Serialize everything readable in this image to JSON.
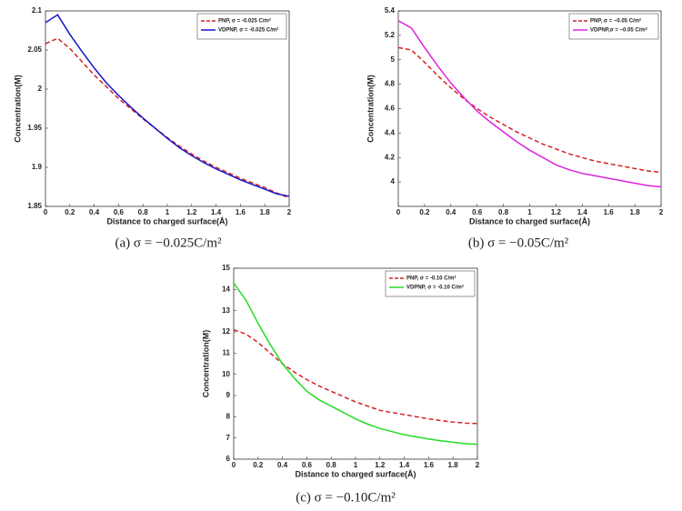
{
  "chart_data": [
    {
      "type": "line",
      "caption": "(a) σ = −0.025C/m²",
      "xlabel": "Distance to charged surface(Å)",
      "ylabel": "Concentration(M)",
      "x": [
        0,
        0.1,
        0.2,
        0.3,
        0.4,
        0.5,
        0.6,
        0.7,
        0.8,
        0.9,
        1.0,
        1.1,
        1.2,
        1.3,
        1.4,
        1.5,
        1.6,
        1.7,
        1.8,
        1.9,
        2.0
      ],
      "xlim": [
        0,
        2
      ],
      "xticks": [
        0,
        0.2,
        0.4,
        0.6,
        0.8,
        1,
        1.2,
        1.4,
        1.6,
        1.8,
        2
      ],
      "ylim": [
        1.85,
        2.1
      ],
      "yticks": [
        1.85,
        1.9,
        1.95,
        2,
        2.05,
        2.1
      ],
      "legend": "upper right",
      "series": [
        {
          "name": "PNP,    σ = -0.025 C/m²",
          "color": "#d42020",
          "dashed": true,
          "values": [
            2.058,
            2.065,
            2.052,
            2.035,
            2.018,
            2.003,
            1.988,
            1.975,
            1.962,
            1.95,
            1.938,
            1.927,
            1.917,
            1.908,
            1.9,
            1.893,
            1.886,
            1.88,
            1.874,
            1.867,
            1.861
          ]
        },
        {
          "name": "VDPNP, σ = -0.025 C/m²",
          "color": "#1515c8",
          "dashed": false,
          "values": [
            2.085,
            2.095,
            2.07,
            2.048,
            2.027,
            2.008,
            1.992,
            1.977,
            1.963,
            1.95,
            1.937,
            1.925,
            1.915,
            1.906,
            1.898,
            1.891,
            1.884,
            1.878,
            1.872,
            1.866,
            1.863
          ]
        }
      ]
    },
    {
      "type": "line",
      "caption": "(b) σ = −0.05C/m²",
      "xlabel": "Distance to charged surface(Å)",
      "ylabel": "Concentration(M)",
      "x": [
        0,
        0.1,
        0.2,
        0.3,
        0.4,
        0.5,
        0.6,
        0.7,
        0.8,
        0.9,
        1.0,
        1.1,
        1.2,
        1.3,
        1.4,
        1.5,
        1.6,
        1.7,
        1.8,
        1.9,
        2.0
      ],
      "xlim": [
        0,
        2
      ],
      "xticks": [
        0,
        0.2,
        0.4,
        0.6,
        0.8,
        1,
        1.2,
        1.4,
        1.6,
        1.8,
        2
      ],
      "ylim": [
        3.8,
        5.4
      ],
      "yticks": [
        4,
        4.2,
        4.4,
        4.6,
        4.8,
        5,
        5.2,
        5.4
      ],
      "legend": "upper right",
      "series": [
        {
          "name": "PNP,   σ = −0.05 C/m²",
          "color": "#d42020",
          "dashed": true,
          "values": [
            5.1,
            5.08,
            4.98,
            4.87,
            4.77,
            4.68,
            4.6,
            4.53,
            4.47,
            4.41,
            4.36,
            4.31,
            4.27,
            4.23,
            4.2,
            4.17,
            4.15,
            4.13,
            4.11,
            4.09,
            4.08
          ]
        },
        {
          "name": "VDPNP,σ = −0.05 C/m²",
          "color": "#dd22dd",
          "dashed": false,
          "values": [
            5.32,
            5.26,
            5.1,
            4.95,
            4.81,
            4.69,
            4.58,
            4.49,
            4.41,
            4.33,
            4.26,
            4.2,
            4.14,
            4.1,
            4.07,
            4.05,
            4.03,
            4.01,
            3.99,
            3.97,
            3.96
          ]
        }
      ]
    },
    {
      "type": "line",
      "caption": "(c) σ = −0.10C/m²",
      "xlabel": "Distance to charged surface(Å)",
      "ylabel": "Concentration(M)",
      "x": [
        0,
        0.1,
        0.2,
        0.3,
        0.4,
        0.5,
        0.6,
        0.7,
        0.8,
        0.9,
        1.0,
        1.1,
        1.2,
        1.3,
        1.4,
        1.5,
        1.6,
        1.7,
        1.8,
        1.9,
        2.0
      ],
      "xlim": [
        0,
        2
      ],
      "xticks": [
        0,
        0.2,
        0.4,
        0.6,
        0.8,
        1,
        1.2,
        1.4,
        1.6,
        1.8,
        2
      ],
      "ylim": [
        6,
        15
      ],
      "yticks": [
        6,
        7,
        8,
        9,
        10,
        11,
        12,
        13,
        14,
        15
      ],
      "legend": "upper right",
      "series": [
        {
          "name": "PNP,     σ = -0.10 C/m²",
          "color": "#d42020",
          "dashed": true,
          "values": [
            12.1,
            11.9,
            11.5,
            11.0,
            10.5,
            10.1,
            9.75,
            9.45,
            9.2,
            8.95,
            8.7,
            8.5,
            8.3,
            8.2,
            8.1,
            8.0,
            7.9,
            7.82,
            7.75,
            7.7,
            7.68
          ]
        },
        {
          "name": "VDPNP, σ = -0.10 C/m²",
          "color": "#22dd22",
          "dashed": false,
          "values": [
            14.3,
            13.5,
            12.4,
            11.4,
            10.5,
            9.8,
            9.2,
            8.8,
            8.5,
            8.2,
            7.9,
            7.65,
            7.45,
            7.3,
            7.15,
            7.05,
            6.95,
            6.87,
            6.8,
            6.73,
            6.7
          ]
        }
      ]
    }
  ]
}
